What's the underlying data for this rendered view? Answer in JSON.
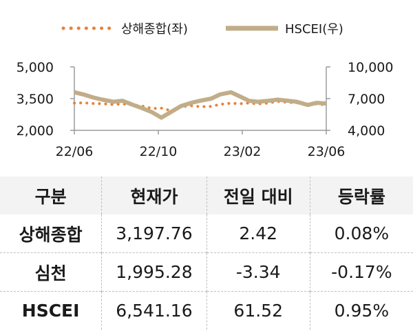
{
  "chart_data": {
    "type": "line",
    "x_ticks": [
      "22/06",
      "22/10",
      "23/02",
      "23/06"
    ],
    "y_left": {
      "ylim": [
        2000,
        5000
      ],
      "ticks": [
        "5,000",
        "3,500",
        "2,000"
      ],
      "tick_values": [
        5000,
        3500,
        2000
      ]
    },
    "y_right": {
      "ylim": [
        4000,
        10000
      ],
      "ticks": [
        "10,000",
        "7,000",
        "4,000"
      ],
      "tick_values": [
        10000,
        7000,
        4000
      ]
    },
    "grid": false,
    "legend_position": "top",
    "series": [
      {
        "name": "상해종합(좌)",
        "axis": "left",
        "style": "dotted",
        "color": "#E8823A",
        "x": [
          "2022-06-01",
          "2022-06-15",
          "2022-07-01",
          "2022-07-15",
          "2022-08-01",
          "2022-08-15",
          "2022-09-01",
          "2022-09-15",
          "2022-10-01",
          "2022-10-15",
          "2022-11-01",
          "2022-11-15",
          "2022-12-01",
          "2022-12-15",
          "2023-01-01",
          "2023-01-15",
          "2023-02-01",
          "2023-02-15",
          "2023-03-01",
          "2023-03-15",
          "2023-04-01",
          "2023-04-15",
          "2023-05-01",
          "2023-05-15",
          "2023-06-01",
          "2023-06-15",
          "2023-06-30"
        ],
        "values": [
          3290,
          3300,
          3270,
          3260,
          3220,
          3250,
          3200,
          3150,
          3030,
          3050,
          2920,
          3120,
          3160,
          3120,
          3130,
          3230,
          3280,
          3260,
          3290,
          3250,
          3290,
          3370,
          3320,
          3300,
          3210,
          3250,
          3200
        ]
      },
      {
        "name": "HSCEI(우)",
        "axis": "right",
        "style": "solid",
        "color": "#C1AD88",
        "x": [
          "2022-06-01",
          "2022-06-15",
          "2022-07-01",
          "2022-07-15",
          "2022-08-01",
          "2022-08-15",
          "2022-09-01",
          "2022-09-15",
          "2022-10-01",
          "2022-10-15",
          "2022-11-01",
          "2022-11-15",
          "2022-12-01",
          "2022-12-15",
          "2023-01-01",
          "2023-01-15",
          "2023-02-01",
          "2023-02-15",
          "2023-03-01",
          "2023-03-15",
          "2023-04-01",
          "2023-04-15",
          "2023-05-01",
          "2023-05-15",
          "2023-06-01",
          "2023-06-15",
          "2023-06-30"
        ],
        "values": [
          7600,
          7400,
          7100,
          6900,
          6700,
          6800,
          6400,
          6100,
          5700,
          5200,
          5800,
          6300,
          6600,
          6800,
          7000,
          7400,
          7600,
          7200,
          6800,
          6700,
          6800,
          6900,
          6800,
          6700,
          6400,
          6600,
          6540
        ]
      }
    ]
  },
  "table": {
    "headers": [
      "구분",
      "현재가",
      "전일 대비",
      "등락률"
    ],
    "rows": [
      [
        "상해종합",
        "3,197.76",
        "2.42",
        "0.08%"
      ],
      [
        "심천",
        "1,995.28",
        "-3.34",
        "-0.17%"
      ],
      [
        "HSCEI",
        "6,541.16",
        "61.52",
        "0.95%"
      ]
    ]
  }
}
